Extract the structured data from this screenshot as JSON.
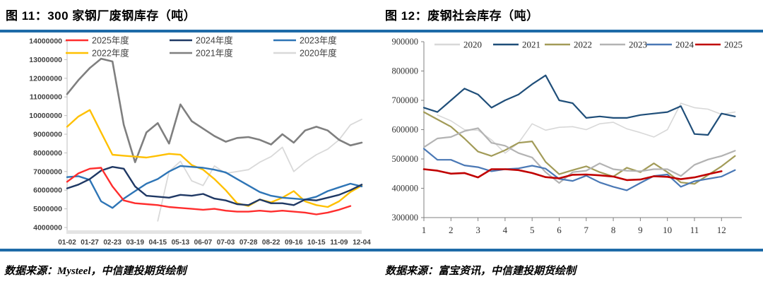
{
  "page": {
    "left_panel": {
      "title": "图 11：300 家钢厂废钢库存（吨）",
      "source_note": "数据来源：Mysteel，中信建投期货绘制"
    },
    "right_panel": {
      "title": "图 12：废钢社会库存（吨）",
      "source_note": "数据来源：富宝资讯，中信建投期货绘制"
    }
  },
  "colors": {
    "divider_blue": "#1E6BA8",
    "axis_gray_left": "#BFBFBF",
    "axis_gray_right": "#808080",
    "label_text": "#404040"
  },
  "chart_data": [
    {
      "id": "steel-mill-scrap-inventory",
      "type": "line",
      "title": "300 家钢厂废钢库存（吨）",
      "xlabel": "",
      "ylabel": "",
      "ylim": [
        4000000,
        14000000
      ],
      "ytick_step": 1000000,
      "grid": false,
      "legend_position": "top-inside-2rows",
      "x_labels": [
        "01-02",
        "01-27",
        "02-23",
        "03-19",
        "04-15",
        "05-13",
        "06-07",
        "07-03",
        "07-28",
        "08-22",
        "09-16",
        "10-15",
        "11-09",
        "12-04"
      ],
      "sample_dates": [
        "01-02",
        "01-14",
        "01-27",
        "02-10",
        "02-23",
        "03-07",
        "03-19",
        "04-01",
        "04-15",
        "04-29",
        "05-13",
        "05-26",
        "06-07",
        "06-20",
        "07-03",
        "07-15",
        "07-28",
        "08-10",
        "08-22",
        "09-04",
        "09-16",
        "09-30",
        "10-15",
        "10-27",
        "11-09",
        "11-21",
        "12-04"
      ],
      "series": [
        {
          "name": "2025年度",
          "color": "#FF2D2D",
          "stroke_width": 2.4,
          "z": 6,
          "values": [
            6450000,
            6900000,
            7150000,
            7200000,
            6200000,
            5450000,
            5300000,
            5250000,
            5200000,
            5100000,
            5050000,
            5000000,
            4950000,
            5000000,
            4900000,
            4850000,
            4850000,
            4900000,
            4850000,
            4900000,
            4850000,
            4800000,
            4700000,
            4800000,
            4950000,
            5150000,
            null
          ]
        },
        {
          "name": "2024年度",
          "color": "#1F3864",
          "stroke_width": 2.4,
          "z": 5,
          "values": [
            6100000,
            6300000,
            6600000,
            7050000,
            7250000,
            7150000,
            6200000,
            5700000,
            5650000,
            5600000,
            5750000,
            5700000,
            5800000,
            5550000,
            5450000,
            5250000,
            5200000,
            5500000,
            5300000,
            5300000,
            5200000,
            5500000,
            5450000,
            5600000,
            5750000,
            6000000,
            6300000
          ]
        },
        {
          "name": "2023年度",
          "color": "#2E75B6",
          "stroke_width": 2.4,
          "z": 4,
          "values": [
            6700000,
            6750000,
            6550000,
            5400000,
            5050000,
            5550000,
            5950000,
            6350000,
            6600000,
            7000000,
            7300000,
            7250000,
            7200000,
            7100000,
            6950000,
            6600000,
            6250000,
            5900000,
            5700000,
            5600000,
            5550000,
            5500000,
            5650000,
            5950000,
            6150000,
            6350000,
            6200000
          ]
        },
        {
          "name": "2022年度",
          "color": "#FFC000",
          "stroke_width": 2.4,
          "z": 3,
          "values": [
            9400000,
            9950000,
            10300000,
            9100000,
            7900000,
            7850000,
            7800000,
            7750000,
            7850000,
            7950000,
            7900000,
            7350000,
            7100000,
            6600000,
            6000000,
            5300000,
            5150000,
            5500000,
            5350000,
            5600000,
            5950000,
            5400000,
            5200000,
            5100000,
            5400000,
            5900000,
            6250000
          ]
        },
        {
          "name": "2021年度",
          "color": "#7F7F7F",
          "stroke_width": 2.6,
          "z": 2,
          "values": [
            11150000,
            11900000,
            12550000,
            13050000,
            12900000,
            9500000,
            7500000,
            9100000,
            9600000,
            8500000,
            10600000,
            9700000,
            9300000,
            8900000,
            8600000,
            8800000,
            8850000,
            8700000,
            8450000,
            9000000,
            8550000,
            9200000,
            9400000,
            9200000,
            8700000,
            8400000,
            8550000
          ]
        },
        {
          "name": "2020年度",
          "color": "#D9D9D9",
          "stroke_width": 1.8,
          "z": 1,
          "values": [
            null,
            null,
            null,
            null,
            null,
            null,
            null,
            null,
            4350000,
            7000000,
            7550000,
            6500000,
            6250000,
            7300000,
            6900000,
            7000000,
            7100000,
            7500000,
            7800000,
            8300000,
            7000000,
            7500000,
            7900000,
            8200000,
            8700000,
            9500000,
            9800000
          ]
        }
      ]
    },
    {
      "id": "scrap-social-inventory",
      "type": "line",
      "title": "废钢社会库存（吨）",
      "xlabel": "",
      "ylabel": "",
      "ylim": [
        300000,
        900000
      ],
      "ytick_step": 100000,
      "xlim": [
        1,
        12.75
      ],
      "xticks": [
        1,
        2,
        3,
        4,
        5,
        6,
        7,
        8,
        9,
        10,
        11,
        12
      ],
      "grid": false,
      "legend_position": "top-inside-row",
      "x": [
        1,
        1.5,
        2,
        2.5,
        3,
        3.5,
        4,
        4.5,
        5,
        5.5,
        6,
        6.5,
        7,
        7.5,
        8,
        8.5,
        9,
        9.5,
        10,
        10.5,
        11,
        11.5,
        12,
        12.5
      ],
      "series": [
        {
          "name": "2020",
          "color": "#D8D8D8",
          "stroke_width": 1.6,
          "z": 1,
          "values": [
            null,
            650000,
            630000,
            600000,
            598000,
            565000,
            520000,
            555000,
            620000,
            598000,
            608000,
            610000,
            600000,
            620000,
            625000,
            603000,
            590000,
            575000,
            600000,
            690000,
            675000,
            670000,
            652000,
            660000
          ]
        },
        {
          "name": "2021",
          "color": "#1F4E79",
          "stroke_width": 2.2,
          "z": 2,
          "values": [
            675000,
            660000,
            700000,
            740000,
            720000,
            675000,
            700000,
            720000,
            755000,
            785000,
            700000,
            690000,
            640000,
            645000,
            640000,
            640000,
            650000,
            655000,
            660000,
            680000,
            585000,
            582000,
            655000,
            645000
          ]
        },
        {
          "name": "2022",
          "color": "#A29B58",
          "stroke_width": 2.2,
          "z": 3,
          "values": [
            660000,
            635000,
            610000,
            570000,
            525000,
            510000,
            530000,
            555000,
            560000,
            490000,
            448000,
            462000,
            475000,
            455000,
            440000,
            470000,
            455000,
            485000,
            455000,
            420000,
            415000,
            445000,
            475000,
            510000
          ]
        },
        {
          "name": "2023",
          "color": "#B3B3B3",
          "stroke_width": 2.2,
          "z": 4,
          "values": [
            540000,
            570000,
            575000,
            595000,
            605000,
            555000,
            545000,
            520000,
            505000,
            455000,
            418000,
            455000,
            460000,
            485000,
            465000,
            460000,
            458000,
            465000,
            465000,
            442000,
            480000,
            498000,
            510000,
            528000
          ]
        },
        {
          "name": "2024",
          "color": "#4A78B5",
          "stroke_width": 2.2,
          "z": 5,
          "values": [
            535000,
            497000,
            497000,
            478000,
            472000,
            458000,
            465000,
            468000,
            477000,
            467000,
            432000,
            425000,
            443000,
            420000,
            405000,
            393000,
            418000,
            442000,
            447000,
            405000,
            424000,
            432000,
            440000,
            462000
          ]
        },
        {
          "name": "2025",
          "color": "#C00000",
          "stroke_width": 2.6,
          "z": 6,
          "values": [
            465000,
            460000,
            450000,
            452000,
            437000,
            465000,
            465000,
            462000,
            452000,
            438000,
            434000,
            446000,
            447000,
            444000,
            440000,
            428000,
            430000,
            441000,
            439000,
            431000,
            437000,
            448000,
            458000,
            null
          ]
        }
      ]
    }
  ]
}
